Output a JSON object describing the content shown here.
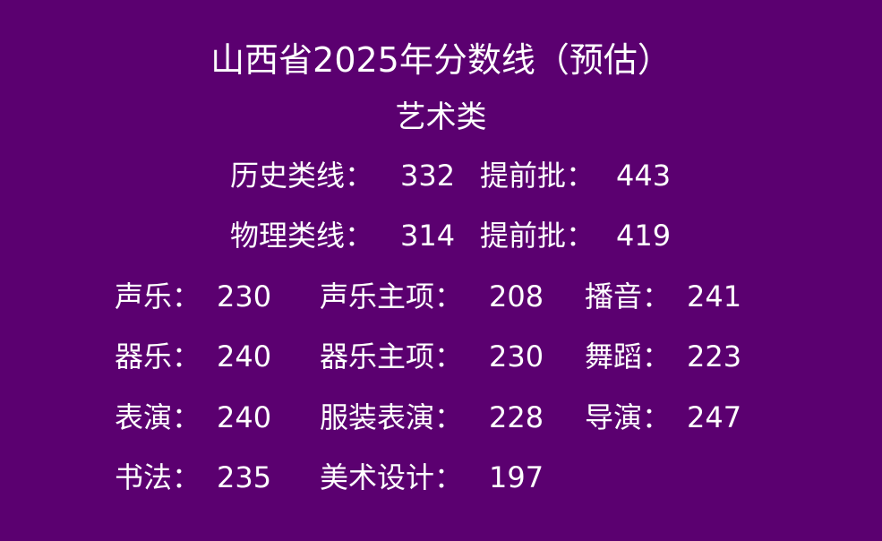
{
  "title": "山西省2025年分数线（预估）",
  "subtitle": "艺术类",
  "lines": [
    {
      "label": "历史类线：",
      "value": "332",
      "label2": "提前批：",
      "value2": "443"
    },
    {
      "label": "物理类线：",
      "value": "314",
      "label2": "提前批：",
      "value2": "419"
    }
  ],
  "grid": [
    [
      {
        "label": "声乐：",
        "value": "230"
      },
      {
        "label": "声乐主项：",
        "value": "208"
      },
      {
        "label": "播音：",
        "value": "241"
      }
    ],
    [
      {
        "label": "器乐：",
        "value": "240"
      },
      {
        "label": "器乐主项：",
        "value": "230"
      },
      {
        "label": "舞蹈：",
        "value": "223"
      }
    ],
    [
      {
        "label": "表演：",
        "value": "240"
      },
      {
        "label": "服装表演：",
        "value": "228"
      },
      {
        "label": "导演：",
        "value": "247"
      }
    ],
    [
      {
        "label": "书法：",
        "value": "235"
      },
      {
        "label": "美术设计：",
        "value": "197"
      }
    ]
  ],
  "colors": {
    "background": "#5b0070",
    "text": "#ffffff"
  }
}
